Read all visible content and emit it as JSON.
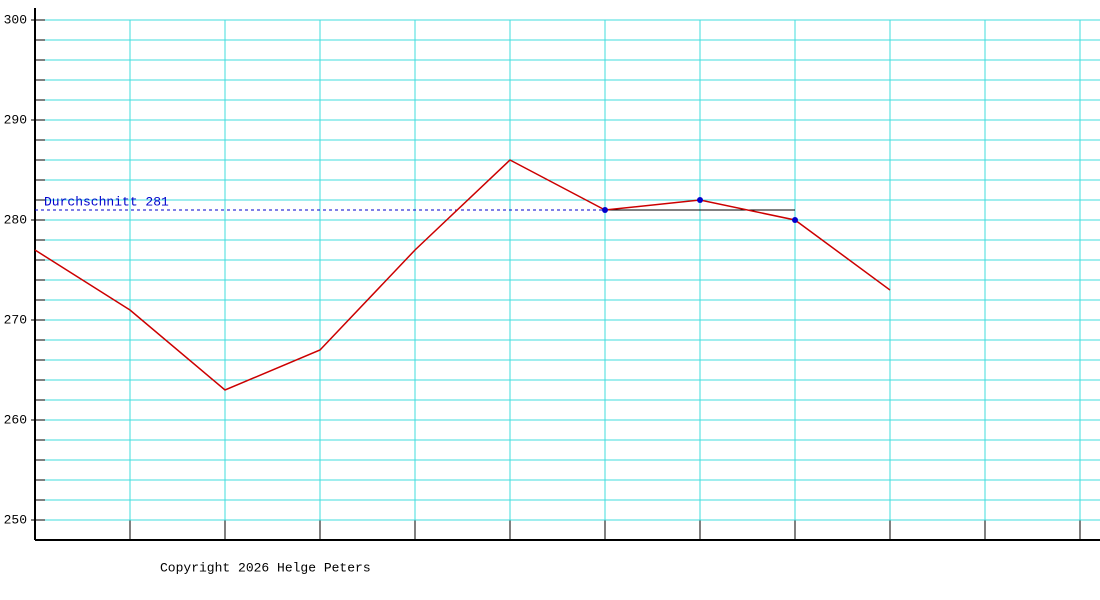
{
  "chart_data": {
    "type": "line",
    "categories": [
      null,
      null,
      null,
      null,
      null,
      null,
      null,
      null,
      null,
      null,
      null,
      null
    ],
    "series": [
      {
        "color": "#cc0000",
        "values": [
          277,
          271,
          263,
          267,
          277,
          286,
          281,
          282,
          280,
          273,
          null,
          null
        ]
      }
    ],
    "ylim": [
      248,
      301.2
    ],
    "yticks": [
      250,
      260,
      270,
      280,
      290,
      300
    ],
    "minor_grid_step": 2,
    "grid": true,
    "grid_color": "#40dede",
    "average": {
      "label": "Durchschnitt 281",
      "value": 281,
      "color": "#0000cc"
    },
    "marker_indices": [
      6,
      7,
      8
    ],
    "marker_color": "#0000cc"
  },
  "footer": "Copyright 2026 Helge Peters"
}
